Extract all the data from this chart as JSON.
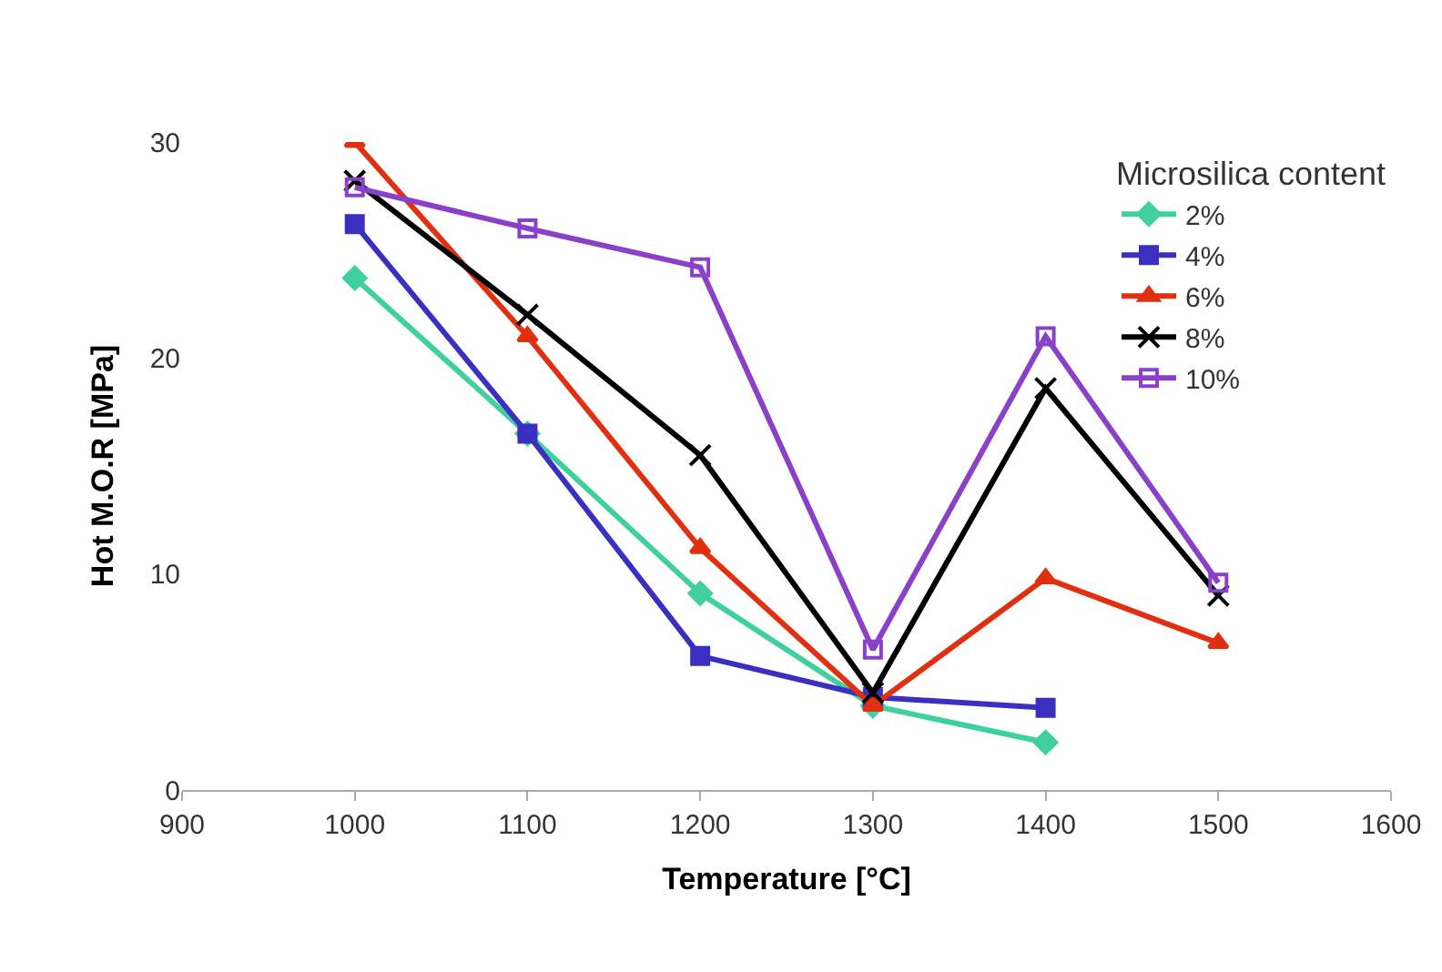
{
  "chart_data": {
    "type": "line",
    "xlabel": "Temperature [°C]",
    "ylabel": "Hot M.O.R [MPa]",
    "legend_title": "Microsilica content",
    "x": [
      1000,
      1100,
      1200,
      1300,
      1400,
      1500
    ],
    "series": [
      {
        "name": "2%",
        "color": "#40d0a0",
        "marker": "diamond",
        "values": [
          23.7,
          16.5,
          9.1,
          3.9,
          2.2,
          null
        ]
      },
      {
        "name": "4%",
        "color": "#3a2fc0",
        "marker": "square",
        "values": [
          26.2,
          16.5,
          6.2,
          4.3,
          3.8,
          null
        ]
      },
      {
        "name": "6%",
        "color": "#e03010",
        "marker": "triangle",
        "values": [
          30,
          21,
          11.2,
          3.9,
          9.8,
          6.8
        ]
      },
      {
        "name": "8%",
        "color": "#000000",
        "marker": "cross",
        "values": [
          28.2,
          22,
          15.5,
          4.5,
          18.6,
          9.0
        ]
      },
      {
        "name": "10%",
        "color": "#8a40c8",
        "marker": "square-open",
        "values": [
          27.9,
          26,
          24.2,
          6.5,
          21,
          9.6
        ]
      }
    ],
    "xlim": [
      900,
      1600
    ],
    "xticks": [
      900,
      1000,
      1100,
      1200,
      1300,
      1400,
      1500,
      1600
    ],
    "ylim": [
      0,
      30
    ],
    "yticks": [
      0,
      10,
      20,
      30
    ],
    "grid": false,
    "legend": "top right",
    "line_style": "solid"
  }
}
